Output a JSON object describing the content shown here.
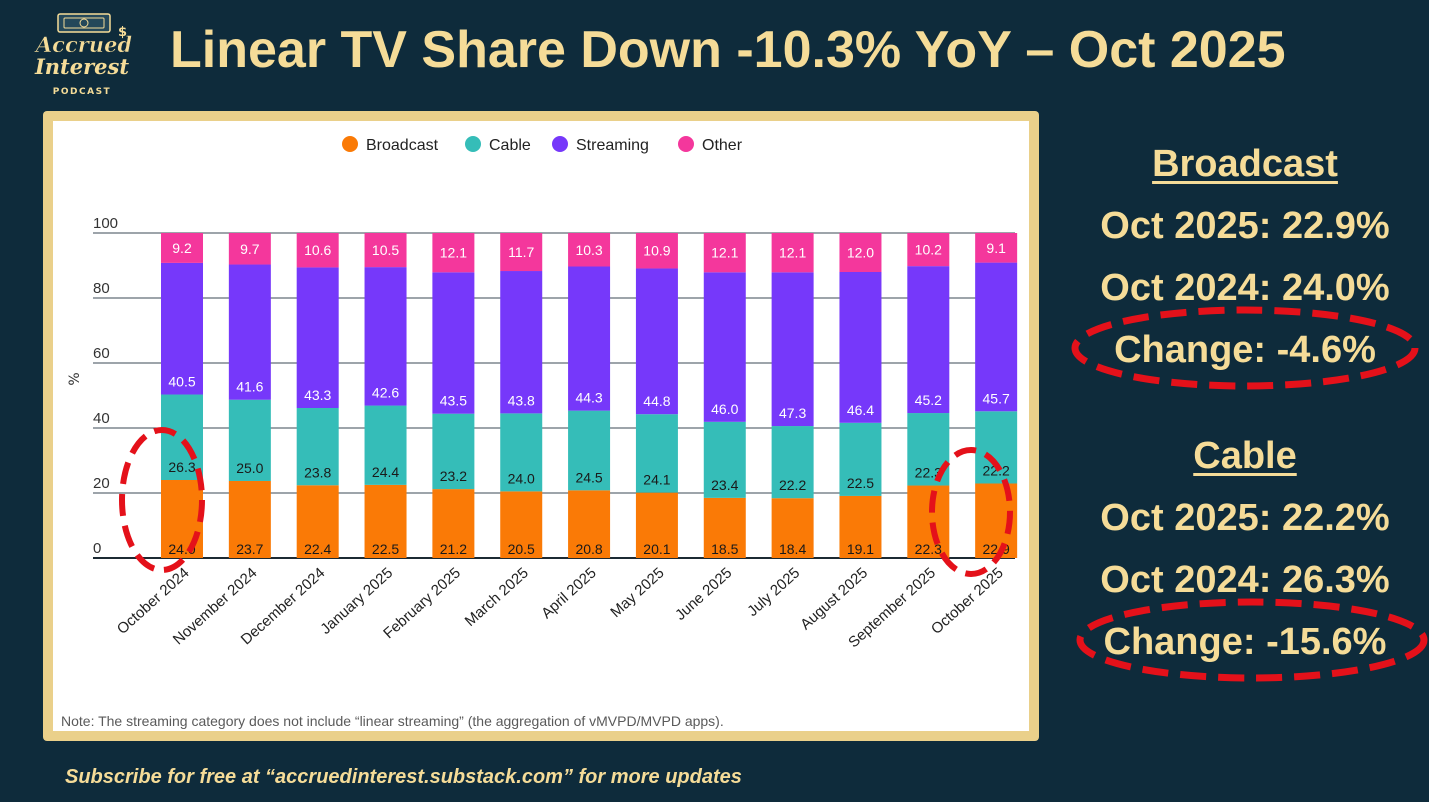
{
  "brand": {
    "logo_text_line1": "Accrued",
    "logo_text_line2": "Interest",
    "logo_subtext": "PODCAST"
  },
  "header": {
    "title": "Linear TV Share Down -10.3% YoY – Oct 2025"
  },
  "colors": {
    "background": "#0e2b3b",
    "title": "#f5dc98",
    "broadcast": "#fa7a06",
    "cable": "#35bdb8",
    "streaming": "#7638fa",
    "other": "#f4379c",
    "highlight_ring": "#e4111a"
  },
  "chart_data": {
    "type": "bar",
    "stacked": true,
    "ylabel": "%",
    "ylim": [
      0,
      100
    ],
    "yticks": [
      0,
      20,
      40,
      60,
      80,
      100
    ],
    "grid": true,
    "legend_position": "top-center",
    "categories": [
      "October 2024",
      "November 2024",
      "December 2024",
      "January 2025",
      "February 2025",
      "March 2025",
      "April 2025",
      "May 2025",
      "June 2025",
      "July 2025",
      "August 2025",
      "September 2025",
      "October 2025"
    ],
    "series": [
      {
        "name": "Broadcast",
        "color": "#fa7a06",
        "label_color": "#1a1a1a",
        "values": [
          "24.0",
          "23.7",
          "22.4",
          "22.5",
          "21.2",
          "20.5",
          "20.8",
          "20.1",
          "18.5",
          "18.4",
          "19.1",
          "22.3",
          "22.9"
        ]
      },
      {
        "name": "Cable",
        "color": "#35bdb8",
        "label_color": "#1a1a1a",
        "values": [
          "26.3",
          "25.0",
          "23.8",
          "24.4",
          "23.2",
          "24.0",
          "24.5",
          "24.1",
          "23.4",
          "22.2",
          "22.5",
          "22.3",
          "22.2"
        ]
      },
      {
        "name": "Streaming",
        "color": "#7638fa",
        "label_color": "#ffffff",
        "values": [
          "40.5",
          "41.6",
          "43.3",
          "42.6",
          "43.5",
          "43.8",
          "44.3",
          "44.8",
          "46.0",
          "47.3",
          "46.4",
          "45.2",
          "45.7"
        ]
      },
      {
        "name": "Other",
        "color": "#f4379c",
        "label_color": "#ffffff",
        "values": [
          "9.2",
          "9.7",
          "10.6",
          "10.5",
          "12.1",
          "11.7",
          "10.3",
          "10.9",
          "12.1",
          "12.1",
          "12.0",
          "10.2",
          "9.1"
        ]
      }
    ],
    "note": "Note: The streaming category does not include “linear streaming” (the aggregation of vMVPD/MVPD apps)."
  },
  "stats": {
    "broadcast": {
      "heading": "Broadcast",
      "current": "Oct 2025: 22.9%",
      "prior": "Oct 2024: 24.0%",
      "change": "Change: -4.6%"
    },
    "cable": {
      "heading": "Cable",
      "current": "Oct 2025: 22.2%",
      "prior": "Oct 2024: 26.3%",
      "change": "Change: -15.6%"
    }
  },
  "footer": {
    "text": "Subscribe for free at “accruedinterest.substack.com” for more updates"
  }
}
